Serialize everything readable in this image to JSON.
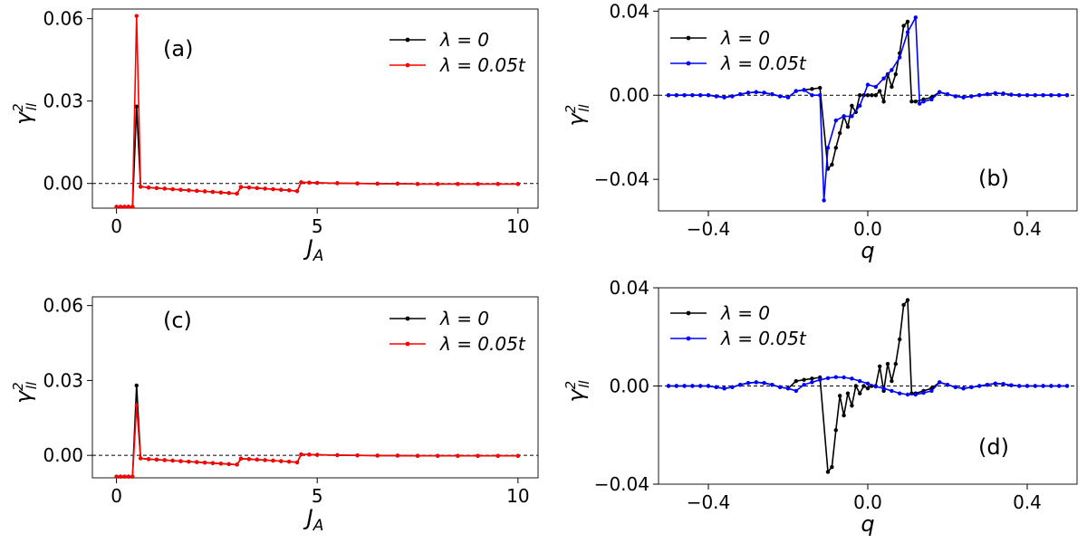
{
  "chart_data": [
    {
      "type": "line",
      "panel_label": "(a)",
      "xlabel": "J_A",
      "ylabel": "γ²_ll",
      "xlim": [
        -0.6,
        10.5
      ],
      "ylim": [
        -0.009,
        0.0635
      ],
      "xticks": [
        0,
        5,
        10
      ],
      "yticks": [
        0.0,
        0.03,
        0.06
      ],
      "xtick_labels": [
        "0",
        "5",
        "10"
      ],
      "ytick_labels": [
        "0.00",
        "0.03",
        "0.06"
      ],
      "legend_position": "top-right",
      "zero_line": true,
      "series": [
        {
          "name": "λ = 0",
          "color": "#000000",
          "x": [
            0,
            0.1,
            0.2,
            0.3,
            0.4,
            0.5,
            0.6,
            0.8,
            1.0,
            1.2,
            1.4,
            1.6,
            1.8,
            2.0,
            2.2,
            2.4,
            2.6,
            2.8,
            3.0,
            3.1,
            3.3,
            3.5,
            3.7,
            3.9,
            4.1,
            4.3,
            4.5,
            4.6,
            4.8,
            5.0,
            5.5,
            6.0,
            6.5,
            7.0,
            7.5,
            8.0,
            8.5,
            9.0,
            9.5,
            10.0
          ],
          "y": [
            -0.0085,
            -0.0085,
            -0.0085,
            -0.0085,
            -0.0085,
            0.028,
            -0.0012,
            -0.0015,
            -0.0017,
            -0.0019,
            -0.0021,
            -0.0023,
            -0.0025,
            -0.0027,
            -0.0029,
            -0.0031,
            -0.0033,
            -0.0035,
            -0.0037,
            -0.0013,
            -0.0015,
            -0.0017,
            -0.0019,
            -0.0021,
            -0.0023,
            -0.0025,
            -0.0028,
            0.0004,
            0.0003,
            0.0002,
            0.0001,
            0.0,
            -0.0001,
            -0.0001,
            -0.0002,
            -0.0002,
            -0.0002,
            -0.0002,
            -0.0002,
            -0.0002
          ]
        },
        {
          "name": "λ = 0.05t",
          "color": "#ff0000",
          "x": [
            0,
            0.1,
            0.2,
            0.3,
            0.4,
            0.5,
            0.6,
            0.8,
            1.0,
            1.2,
            1.4,
            1.6,
            1.8,
            2.0,
            2.2,
            2.4,
            2.6,
            2.8,
            3.0,
            3.1,
            3.3,
            3.5,
            3.7,
            3.9,
            4.1,
            4.3,
            4.5,
            4.6,
            4.8,
            5.0,
            5.5,
            6.0,
            6.5,
            7.0,
            7.5,
            8.0,
            8.5,
            9.0,
            9.5,
            10.0
          ],
          "y": [
            -0.0085,
            -0.0085,
            -0.0085,
            -0.0085,
            -0.0085,
            0.061,
            -0.0012,
            -0.0015,
            -0.0017,
            -0.0019,
            -0.0021,
            -0.0023,
            -0.0025,
            -0.0027,
            -0.0029,
            -0.0031,
            -0.0033,
            -0.0035,
            -0.0037,
            -0.0013,
            -0.0015,
            -0.0017,
            -0.0019,
            -0.0021,
            -0.0023,
            -0.0025,
            -0.0028,
            0.0004,
            0.0003,
            0.0002,
            0.0001,
            0.0,
            -0.0001,
            -0.0001,
            -0.0002,
            -0.0002,
            -0.0002,
            -0.0002,
            -0.0002,
            -0.0002
          ]
        }
      ]
    },
    {
      "type": "line",
      "panel_label": "(b)",
      "xlabel": "q",
      "ylabel": "γ²_ll",
      "xlim": [
        -0.525,
        0.525
      ],
      "ylim": [
        -0.055,
        0.041
      ],
      "xticks": [
        -0.4,
        0.0,
        0.4
      ],
      "yticks": [
        -0.04,
        0.0,
        0.04
      ],
      "xtick_labels": [
        "−0.4",
        "0.0",
        "0.4"
      ],
      "ytick_labels": [
        "−0.04",
        "0.00",
        "0.04"
      ],
      "legend_position": "top-left",
      "zero_line": true,
      "series": [
        {
          "name": "λ = 0",
          "color": "#000000",
          "x": [
            -0.5,
            -0.48,
            -0.46,
            -0.44,
            -0.42,
            -0.4,
            -0.38,
            -0.36,
            -0.34,
            -0.32,
            -0.3,
            -0.28,
            -0.26,
            -0.24,
            -0.22,
            -0.2,
            -0.18,
            -0.16,
            -0.14,
            -0.12,
            -0.1,
            -0.09,
            -0.08,
            -0.07,
            -0.06,
            -0.05,
            -0.04,
            -0.03,
            -0.02,
            -0.01,
            0.0,
            0.01,
            0.02,
            0.03,
            0.04,
            0.05,
            0.06,
            0.07,
            0.08,
            0.09,
            0.1,
            0.11,
            0.12,
            0.14,
            0.16,
            0.18,
            0.2,
            0.22,
            0.24,
            0.26,
            0.28,
            0.3,
            0.32,
            0.34,
            0.36,
            0.38,
            0.4,
            0.42,
            0.44,
            0.46,
            0.48,
            0.5
          ],
          "y": [
            0.0,
            0.0,
            0.0,
            0.0,
            0.0,
            0.0,
            -0.0005,
            -0.001,
            -0.0005,
            0.0005,
            0.0012,
            0.0015,
            0.0012,
            0.0005,
            -0.0005,
            -0.001,
            0.002,
            0.0025,
            0.003,
            0.0035,
            -0.035,
            -0.033,
            -0.025,
            -0.018,
            -0.01,
            -0.015,
            -0.005,
            -0.008,
            0.0,
            0.0,
            0.0,
            0.0,
            0.0,
            0.002,
            -0.003,
            0.01,
            0.004,
            0.01,
            0.02,
            0.033,
            0.035,
            -0.003,
            -0.003,
            -0.002,
            -0.001,
            0.0015,
            0.0005,
            -0.0005,
            -0.001,
            -0.0005,
            0.0,
            0.0005,
            0.001,
            0.0008,
            0.0003,
            0.0,
            0.0,
            0.0,
            0.0,
            0.0,
            0.0,
            0.0
          ]
        },
        {
          "name": "λ = 0.05t",
          "color": "#0000ff",
          "x": [
            -0.5,
            -0.48,
            -0.46,
            -0.44,
            -0.42,
            -0.4,
            -0.38,
            -0.36,
            -0.34,
            -0.32,
            -0.3,
            -0.28,
            -0.26,
            -0.24,
            -0.22,
            -0.2,
            -0.18,
            -0.16,
            -0.14,
            -0.12,
            -0.11,
            -0.1,
            -0.08,
            -0.06,
            -0.04,
            -0.02,
            0.0,
            0.02,
            0.04,
            0.06,
            0.08,
            0.1,
            0.12,
            0.13,
            0.14,
            0.16,
            0.18,
            0.2,
            0.22,
            0.24,
            0.26,
            0.28,
            0.3,
            0.32,
            0.34,
            0.36,
            0.38,
            0.4,
            0.42,
            0.44,
            0.46,
            0.48,
            0.5
          ],
          "y": [
            0.0,
            0.0,
            0.0,
            0.0,
            0.0,
            0.0,
            -0.0005,
            -0.001,
            -0.0005,
            0.0005,
            0.0012,
            0.0015,
            0.0012,
            0.0005,
            -0.0005,
            -0.001,
            0.002,
            0.0025,
            0.0,
            0.0,
            -0.05,
            -0.025,
            -0.012,
            -0.01,
            -0.01,
            -0.005,
            0.005,
            0.004,
            0.008,
            0.012,
            0.018,
            0.03,
            0.037,
            -0.004,
            -0.003,
            -0.002,
            0.0015,
            0.0005,
            -0.0005,
            -0.001,
            -0.0005,
            0.0,
            0.0005,
            0.001,
            0.0008,
            0.0003,
            0.0,
            0.0,
            0.0,
            0.0,
            0.0,
            0.0,
            0.0
          ]
        }
      ]
    },
    {
      "type": "line",
      "panel_label": "(c)",
      "xlabel": "J_A",
      "ylabel": "γ²_ll",
      "xlim": [
        -0.6,
        10.5
      ],
      "ylim": [
        -0.009,
        0.0635
      ],
      "xticks": [
        0,
        5,
        10
      ],
      "yticks": [
        0.0,
        0.03,
        0.06
      ],
      "xtick_labels": [
        "0",
        "5",
        "10"
      ],
      "ytick_labels": [
        "0.00",
        "0.03",
        "0.06"
      ],
      "legend_position": "top-right",
      "zero_line": true,
      "series": [
        {
          "name": "λ = 0",
          "color": "#000000",
          "x": [
            0,
            0.1,
            0.2,
            0.3,
            0.4,
            0.5,
            0.6,
            0.8,
            1.0,
            1.2,
            1.4,
            1.6,
            1.8,
            2.0,
            2.2,
            2.4,
            2.6,
            2.8,
            3.0,
            3.1,
            3.3,
            3.5,
            3.7,
            3.9,
            4.1,
            4.3,
            4.5,
            4.6,
            4.8,
            5.0,
            5.5,
            6.0,
            6.5,
            7.0,
            7.5,
            8.0,
            8.5,
            9.0,
            9.5,
            10.0
          ],
          "y": [
            -0.0085,
            -0.0085,
            -0.0085,
            -0.0085,
            -0.0085,
            0.028,
            -0.0012,
            -0.0015,
            -0.0017,
            -0.0019,
            -0.0021,
            -0.0023,
            -0.0025,
            -0.0027,
            -0.0029,
            -0.0031,
            -0.0033,
            -0.0035,
            -0.0037,
            -0.0013,
            -0.0015,
            -0.0017,
            -0.0019,
            -0.0021,
            -0.0023,
            -0.0025,
            -0.0028,
            0.0004,
            0.0003,
            0.0002,
            0.0001,
            0.0,
            -0.0001,
            -0.0001,
            -0.0002,
            -0.0002,
            -0.0002,
            -0.0002,
            -0.0002,
            -0.0002
          ]
        },
        {
          "name": "λ = 0.05t",
          "color": "#ff0000",
          "x": [
            0,
            0.1,
            0.2,
            0.3,
            0.4,
            0.5,
            0.6,
            0.8,
            1.0,
            1.2,
            1.4,
            1.6,
            1.8,
            2.0,
            2.2,
            2.4,
            2.6,
            2.8,
            3.0,
            3.1,
            3.3,
            3.5,
            3.7,
            3.9,
            4.1,
            4.3,
            4.5,
            4.6,
            4.8,
            5.0,
            5.5,
            6.0,
            6.5,
            7.0,
            7.5,
            8.0,
            8.5,
            9.0,
            9.5,
            10.0
          ],
          "y": [
            -0.0085,
            -0.0085,
            -0.0085,
            -0.0085,
            -0.0085,
            0.02,
            -0.0012,
            -0.0015,
            -0.0017,
            -0.0019,
            -0.0021,
            -0.0023,
            -0.0025,
            -0.0027,
            -0.0029,
            -0.0031,
            -0.0033,
            -0.0035,
            -0.0037,
            -0.0013,
            -0.0015,
            -0.0017,
            -0.0019,
            -0.0021,
            -0.0023,
            -0.0025,
            -0.0028,
            0.0004,
            0.0003,
            0.0002,
            0.0001,
            0.0,
            -0.0001,
            -0.0001,
            -0.0002,
            -0.0002,
            -0.0002,
            -0.0002,
            -0.0002,
            -0.0002
          ]
        }
      ]
    },
    {
      "type": "line",
      "panel_label": "(d)",
      "xlabel": "q",
      "ylabel": "γ²_ll",
      "xlim": [
        -0.525,
        0.525
      ],
      "ylim": [
        -0.04,
        0.04
      ],
      "xticks": [
        -0.4,
        0.0,
        0.4
      ],
      "yticks": [
        -0.04,
        0.0,
        0.04
      ],
      "xtick_labels": [
        "−0.4",
        "0.0",
        "0.4"
      ],
      "ytick_labels": [
        "−0.04",
        "0.00",
        "0.04"
      ],
      "legend_position": "top-left",
      "zero_line": true,
      "series": [
        {
          "name": "λ = 0",
          "color": "#000000",
          "x": [
            -0.5,
            -0.48,
            -0.46,
            -0.44,
            -0.42,
            -0.4,
            -0.38,
            -0.36,
            -0.34,
            -0.32,
            -0.3,
            -0.28,
            -0.26,
            -0.24,
            -0.22,
            -0.2,
            -0.18,
            -0.16,
            -0.14,
            -0.12,
            -0.1,
            -0.09,
            -0.08,
            -0.07,
            -0.06,
            -0.05,
            -0.04,
            -0.03,
            -0.02,
            -0.01,
            0.0,
            0.01,
            0.02,
            0.03,
            0.04,
            0.05,
            0.06,
            0.07,
            0.08,
            0.09,
            0.1,
            0.11,
            0.12,
            0.14,
            0.16,
            0.18,
            0.2,
            0.22,
            0.24,
            0.26,
            0.28,
            0.3,
            0.32,
            0.34,
            0.36,
            0.38,
            0.4,
            0.42,
            0.44,
            0.46,
            0.48,
            0.5
          ],
          "y": [
            0.0,
            0.0,
            0.0,
            0.0,
            0.0,
            0.0,
            -0.0005,
            -0.001,
            -0.0005,
            0.0005,
            0.0012,
            0.0015,
            0.0012,
            0.0005,
            -0.0005,
            -0.001,
            0.002,
            0.0025,
            0.003,
            0.0035,
            -0.035,
            -0.033,
            -0.018,
            -0.004,
            -0.012,
            -0.003,
            -0.008,
            0.0,
            -0.003,
            0.0,
            -0.001,
            0.0,
            0.0,
            0.008,
            -0.002,
            0.009,
            0.002,
            0.009,
            0.019,
            0.033,
            0.035,
            -0.003,
            -0.003,
            -0.002,
            -0.001,
            0.0015,
            0.0005,
            -0.0005,
            -0.001,
            -0.0005,
            0.0,
            0.0005,
            0.001,
            0.0008,
            0.0003,
            0.0,
            0.0,
            0.0,
            0.0,
            0.0,
            0.0,
            0.0
          ]
        },
        {
          "name": "λ = 0.05t",
          "color": "#0000ff",
          "x": [
            -0.5,
            -0.48,
            -0.46,
            -0.44,
            -0.42,
            -0.4,
            -0.38,
            -0.36,
            -0.34,
            -0.32,
            -0.3,
            -0.28,
            -0.26,
            -0.24,
            -0.22,
            -0.2,
            -0.18,
            -0.16,
            -0.14,
            -0.12,
            -0.1,
            -0.08,
            -0.06,
            -0.04,
            -0.02,
            0.0,
            0.02,
            0.04,
            0.06,
            0.08,
            0.1,
            0.12,
            0.14,
            0.16,
            0.18,
            0.2,
            0.22,
            0.24,
            0.26,
            0.28,
            0.3,
            0.32,
            0.34,
            0.36,
            0.38,
            0.4,
            0.42,
            0.44,
            0.46,
            0.48,
            0.5
          ],
          "y": [
            0.0,
            0.0,
            0.0,
            0.0,
            0.0,
            0.0,
            -0.0005,
            -0.001,
            -0.0005,
            0.0005,
            0.0012,
            0.0015,
            0.0012,
            0.0005,
            -0.0005,
            -0.001,
            -0.002,
            0.0005,
            0.0015,
            0.0025,
            0.0032,
            0.0036,
            0.0035,
            0.003,
            0.002,
            0.001,
            -0.0002,
            -0.001,
            -0.002,
            -0.003,
            -0.0035,
            -0.0035,
            -0.0028,
            -0.002,
            0.0015,
            0.0005,
            -0.0005,
            -0.001,
            -0.0005,
            0.0,
            0.0005,
            0.001,
            0.0008,
            0.0003,
            0.0,
            0.0,
            0.0,
            0.0,
            0.0,
            0.0,
            0.0
          ]
        }
      ]
    }
  ]
}
